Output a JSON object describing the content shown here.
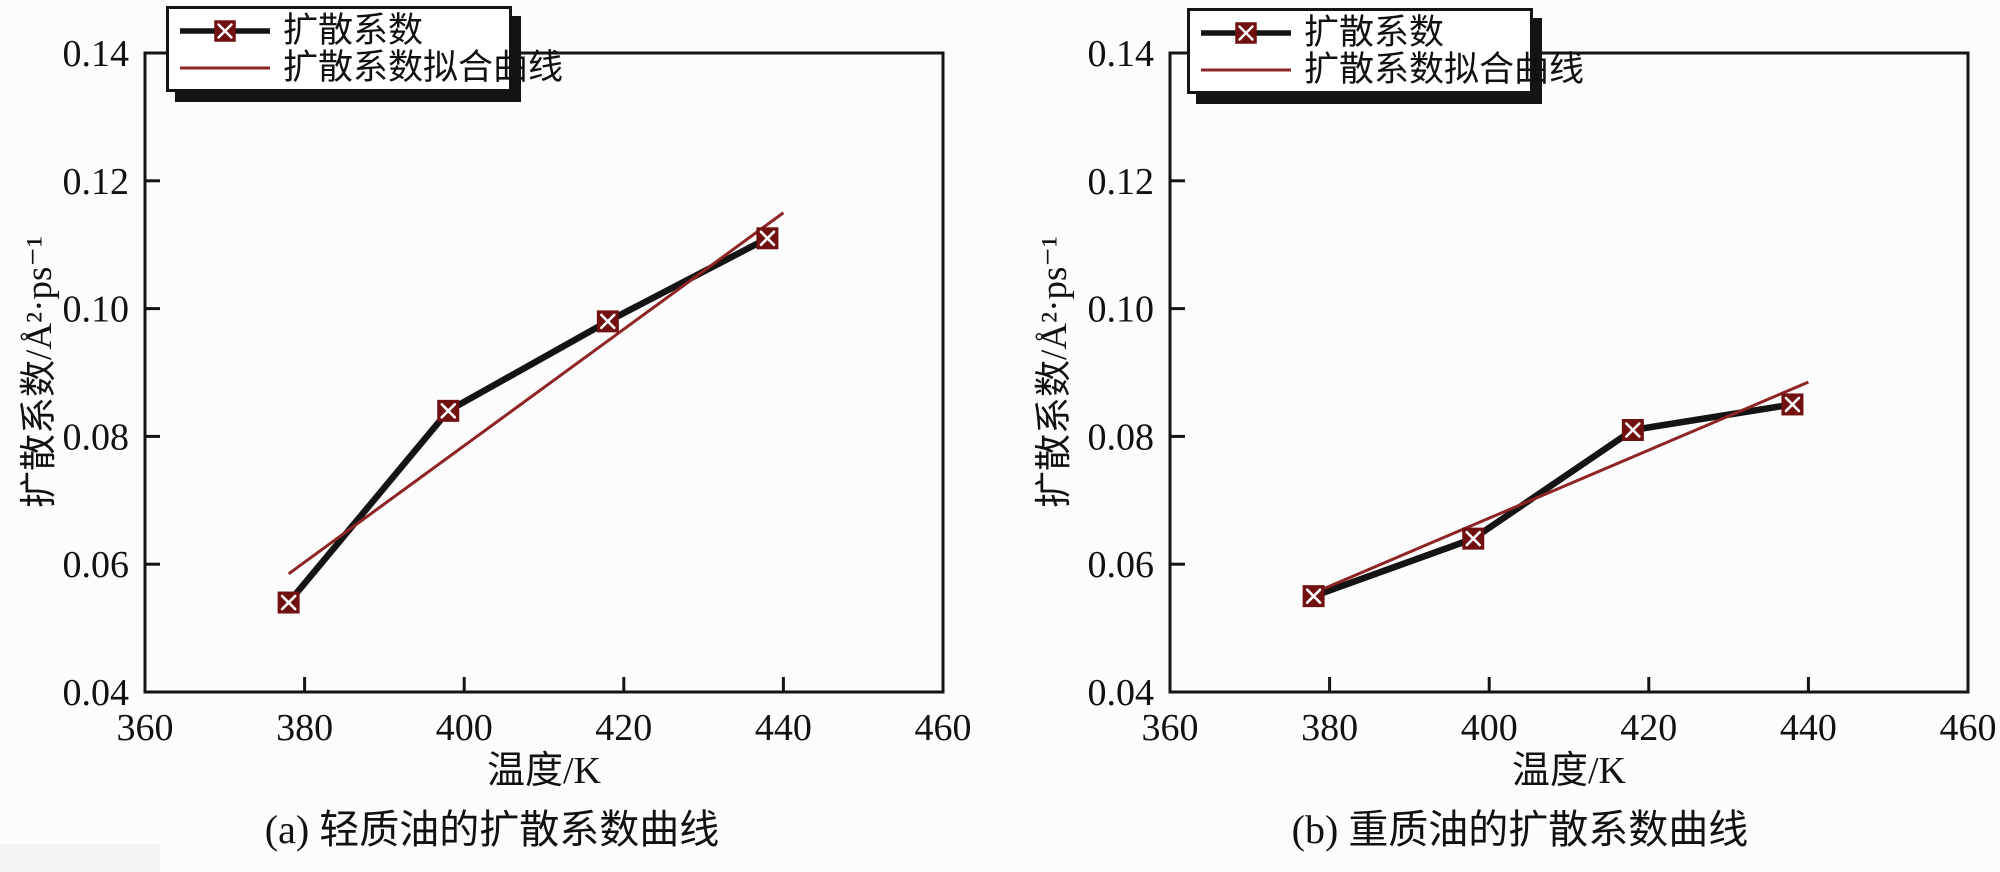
{
  "figure": {
    "background": "#fcfcfc"
  },
  "colors": {
    "axis": "#141414",
    "text": "#111111",
    "data_line": "#141414",
    "fit_line": "#8e2424",
    "marker": "#701010",
    "marker_cross": "#ffffff",
    "legend_border": "#141414",
    "legend_shadow": "#141414"
  },
  "legend": {
    "series_label": "扩散系数",
    "fit_label": "扩散系数拟合曲线"
  },
  "chart_data": [
    {
      "id": "a",
      "type": "line",
      "title": "(a) 轻质油的扩散系数曲线",
      "xlabel": "温度/K",
      "ylabel": "扩散系数/Å²·ps⁻¹",
      "xlim": [
        360,
        460
      ],
      "ylim": [
        0.04,
        0.14
      ],
      "xticks": [
        360,
        380,
        400,
        420,
        440,
        460
      ],
      "yticks": [
        0.04,
        0.06,
        0.08,
        0.1,
        0.12,
        0.14
      ],
      "grid": false,
      "legend_position": "top-left-inside",
      "series": [
        {
          "name": "扩散系数",
          "role": "data",
          "x": [
            378,
            398,
            418,
            438
          ],
          "y": [
            0.054,
            0.084,
            0.098,
            0.111
          ]
        },
        {
          "name": "扩散系数拟合曲线",
          "role": "fit",
          "x": [
            378,
            440
          ],
          "y": [
            0.0585,
            0.115
          ]
        }
      ]
    },
    {
      "id": "b",
      "type": "line",
      "title": "(b) 重质油的扩散系数曲线",
      "xlabel": "温度/K",
      "ylabel": "扩散系数/Å²·ps⁻¹",
      "xlim": [
        360,
        460
      ],
      "ylim": [
        0.04,
        0.14
      ],
      "xticks": [
        360,
        380,
        400,
        420,
        440,
        460
      ],
      "yticks": [
        0.04,
        0.06,
        0.08,
        0.1,
        0.12,
        0.14
      ],
      "grid": false,
      "legend_position": "top-left-inside",
      "series": [
        {
          "name": "扩散系数",
          "role": "data",
          "x": [
            378,
            398,
            418,
            438
          ],
          "y": [
            0.055,
            0.064,
            0.081,
            0.085
          ]
        },
        {
          "name": "扩散系数拟合曲线",
          "role": "fit",
          "x": [
            378,
            440
          ],
          "y": [
            0.0555,
            0.0885
          ]
        }
      ]
    }
  ]
}
